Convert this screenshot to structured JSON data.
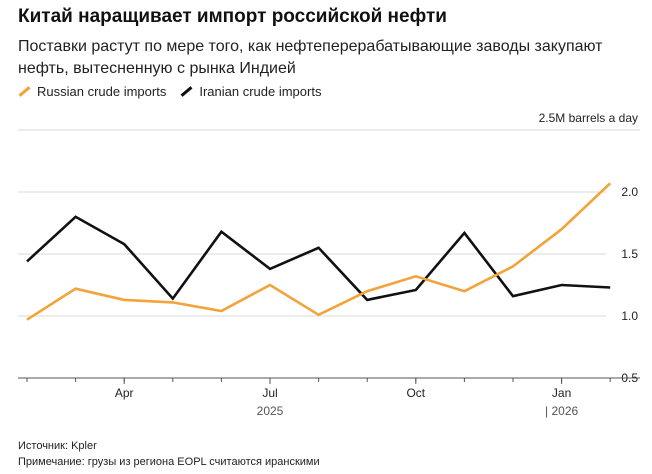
{
  "title": "Китай наращивает импорт российской нефти",
  "subtitle": "Поставки растут по мере того, как нефтеперерабатывающие заводы закупают нефть, вытесненную с рынка Индией",
  "unit_label": "2.5M barrels a day",
  "footer": {
    "source": "Источник: Kpler",
    "note": "Примечание: грузы из региона EOPL считаются иранскими"
  },
  "chart_data": {
    "type": "line",
    "x": [
      "2025-02",
      "2025-03",
      "2025-04",
      "2025-05",
      "2025-06",
      "2025-07",
      "2025-08",
      "2025-09",
      "2025-10",
      "2025-11",
      "2025-12",
      "2026-01",
      "2026-02"
    ],
    "series": [
      {
        "name": "Russian crude imports",
        "color": "#f2a33a",
        "values": [
          0.97,
          1.22,
          1.13,
          1.11,
          1.04,
          1.25,
          1.01,
          1.2,
          1.32,
          1.2,
          1.4,
          1.7,
          2.07
        ]
      },
      {
        "name": "Iranian crude imports",
        "color": "#111111",
        "values": [
          1.44,
          1.8,
          1.58,
          1.14,
          1.68,
          1.38,
          1.55,
          1.13,
          1.21,
          1.67,
          1.16,
          1.25,
          1.23
        ]
      }
    ],
    "y_ticks": [
      "2.0",
      "1.5",
      "1.0",
      "0.5"
    ],
    "ylim": [
      0.5,
      2.5
    ],
    "x_ticks": [
      {
        "label": "Apr",
        "x": "2025-04"
      },
      {
        "label": "Jul",
        "x": "2025-07"
      },
      {
        "label": "Oct",
        "x": "2025-10"
      },
      {
        "label": "Jan",
        "x": "2026-01"
      }
    ],
    "year_labels": [
      {
        "label": "2025",
        "x": "2025-07"
      },
      {
        "label": "| 2026",
        "x": "2026-01"
      }
    ],
    "grid": true,
    "legend_position": "top-left"
  }
}
